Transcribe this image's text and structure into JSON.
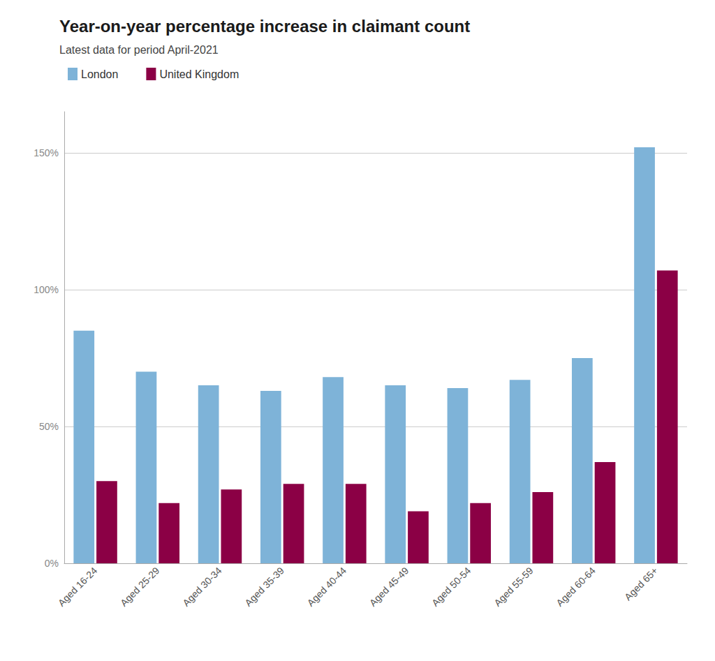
{
  "chart_data": {
    "type": "bar",
    "title": "Year-on-year percentage increase in claimant count",
    "subtitle": "Latest data for period April-2021",
    "categories": [
      "Aged 16-24",
      "Aged 25-29",
      "Aged 30-34",
      "Aged 35-39",
      "Aged 40-44",
      "Aged 45-49",
      "Aged 50-54",
      "Aged 55-59",
      "Aged 60-64",
      "Aged 65+"
    ],
    "series": [
      {
        "name": "London",
        "color": "#7EB3D8",
        "values": [
          0.85,
          0.7,
          0.65,
          0.63,
          0.68,
          0.65,
          0.64,
          0.67,
          0.75,
          1.52
        ]
      },
      {
        "name": "United Kingdom",
        "color": "#8B0045",
        "values": [
          0.3,
          0.22,
          0.27,
          0.29,
          0.29,
          0.19,
          0.22,
          0.26,
          0.37,
          1.07
        ]
      }
    ],
    "ylim": [
      0,
      1.65
    ],
    "yticks": [
      {
        "value": 0.0,
        "label": "0%"
      },
      {
        "value": 0.5,
        "label": "50%"
      },
      {
        "value": 1.0,
        "label": "100%"
      },
      {
        "value": 1.5,
        "label": "150%"
      }
    ],
    "grid": true,
    "legend": "upper left"
  }
}
